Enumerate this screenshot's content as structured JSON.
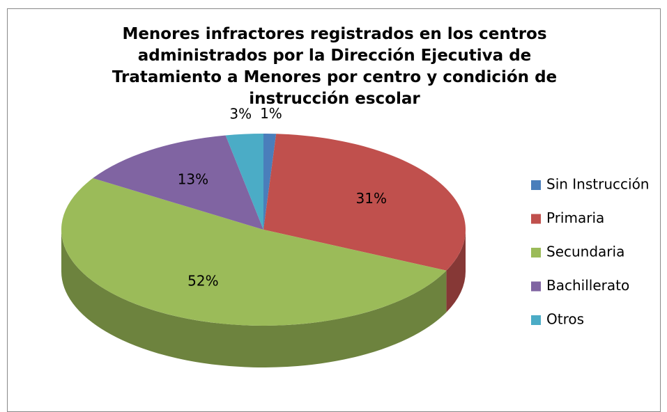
{
  "chart_data": {
    "type": "pie",
    "title": "Menores infractores registrados en los centros administrados por la Dirección Ejecutiva de Tratamiento a Menores por centro y condición de instrucción escolar",
    "categories": [
      "Sin Instrucción",
      "Primaria",
      "Secundaria",
      "Bachillerato",
      "Otros"
    ],
    "values": [
      1,
      31,
      52,
      13,
      3
    ],
    "value_labels": [
      "1%",
      "31%",
      "52%",
      "13%",
      "3%"
    ],
    "colors": [
      "#4a7ebb",
      "#c0504d",
      "#9bbb59",
      "#8064a2",
      "#4bacc6"
    ],
    "legend": "right",
    "three_d": true
  }
}
